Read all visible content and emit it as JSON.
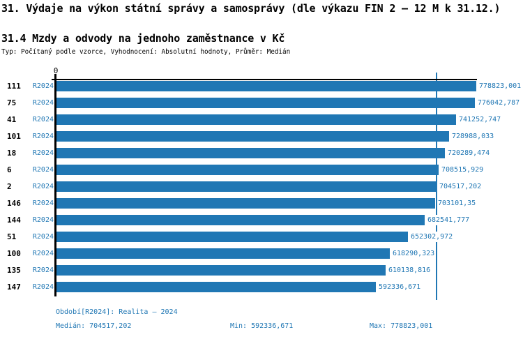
{
  "header": {
    "title": "31. Výdaje na výkon státní správy a samosprávy (dle výkazu FIN 2 – 12 M k 31.12.)",
    "subtitle": "31.4 Mzdy a odvody na jednoho zaměstnance v Kč",
    "meta": "Typ: Počítaný podle vzorce, Vyhodnocení: Absolutní hodnoty, Průměr: Medián"
  },
  "chart_data": {
    "type": "bar",
    "orientation": "horizontal",
    "title": "31.4 Mzdy a odvody na jednoho zaměstnance v Kč",
    "zero_tick": "0",
    "xlim": [
      0,
      778823.001
    ],
    "bar_color": "#2077B4",
    "median_value": 704517.202,
    "series_label": "R2024",
    "rows": [
      {
        "id": "111",
        "period": "R2024",
        "value": 778823.001,
        "display": "778823,001"
      },
      {
        "id": "75",
        "period": "R2024",
        "value": 776042.787,
        "display": "776042,787"
      },
      {
        "id": "41",
        "period": "R2024",
        "value": 741252.747,
        "display": "741252,747"
      },
      {
        "id": "101",
        "period": "R2024",
        "value": 728988.033,
        "display": "728988,033"
      },
      {
        "id": "18",
        "period": "R2024",
        "value": 720289.474,
        "display": "720289,474"
      },
      {
        "id": "6",
        "period": "R2024",
        "value": 708515.929,
        "display": "708515,929"
      },
      {
        "id": "2",
        "period": "R2024",
        "value": 704517.202,
        "display": "704517,202"
      },
      {
        "id": "146",
        "period": "R2024",
        "value": 703101.35,
        "display": "703101,35"
      },
      {
        "id": "144",
        "period": "R2024",
        "value": 682541.777,
        "display": "682541,777"
      },
      {
        "id": "51",
        "period": "R2024",
        "value": 652302.972,
        "display": "652302,972"
      },
      {
        "id": "100",
        "period": "R2024",
        "value": 618290.323,
        "display": "618290,323"
      },
      {
        "id": "135",
        "period": "R2024",
        "value": 610138.816,
        "display": "610138,816"
      },
      {
        "id": "147",
        "period": "R2024",
        "value": 592336.671,
        "display": "592336,671"
      }
    ]
  },
  "footer": {
    "period": "Období[R2024]: Realita – 2024",
    "median": "Medián: 704517,202",
    "min": "Min: 592336,671",
    "max": "Max: 778823,001"
  }
}
